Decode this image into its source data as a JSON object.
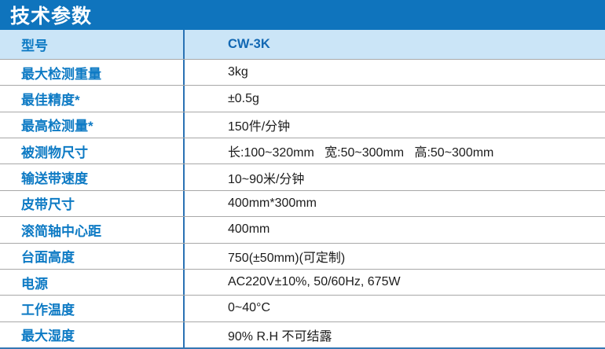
{
  "title": "技术参数",
  "colors": {
    "title_bar_blue": "#0f74bd",
    "header_row_bg": "#cbe5f7",
    "label_blue": "#0d7ac4",
    "model_value_blue": "#1268b3",
    "column_divider_blue": "#2a72b4",
    "row_separator_gray": "#a8a8a8",
    "bottom_border_blue": "#3577b3",
    "value_text": "#1c1c1c"
  },
  "table": {
    "header": {
      "label": "型号",
      "value": "CW-3K"
    },
    "rows": [
      {
        "label": "最大检测重量",
        "value": "3kg"
      },
      {
        "label": "最佳精度*",
        "value": "±0.5g"
      },
      {
        "label": "最高检测量*",
        "value": "150件/分钟"
      },
      {
        "label": "被测物尺寸",
        "value": "长:100~320mm   宽:50~300mm   高:50~300mm"
      },
      {
        "label": "输送带速度",
        "value": "10~90米/分钟"
      },
      {
        "label": "皮带尺寸",
        "value": "400mm*300mm"
      },
      {
        "label": "滚简轴中心距",
        "value": "400mm"
      },
      {
        "label": "台面高度",
        "value": "750(±50mm)(可定制)"
      },
      {
        "label": "电源",
        "value": "AC220V±10%, 50/60Hz, 675W"
      },
      {
        "label": "工作温度",
        "value": "0~40°C"
      },
      {
        "label": "最大湿度",
        "value": "90% R.H 不可结露"
      }
    ]
  }
}
